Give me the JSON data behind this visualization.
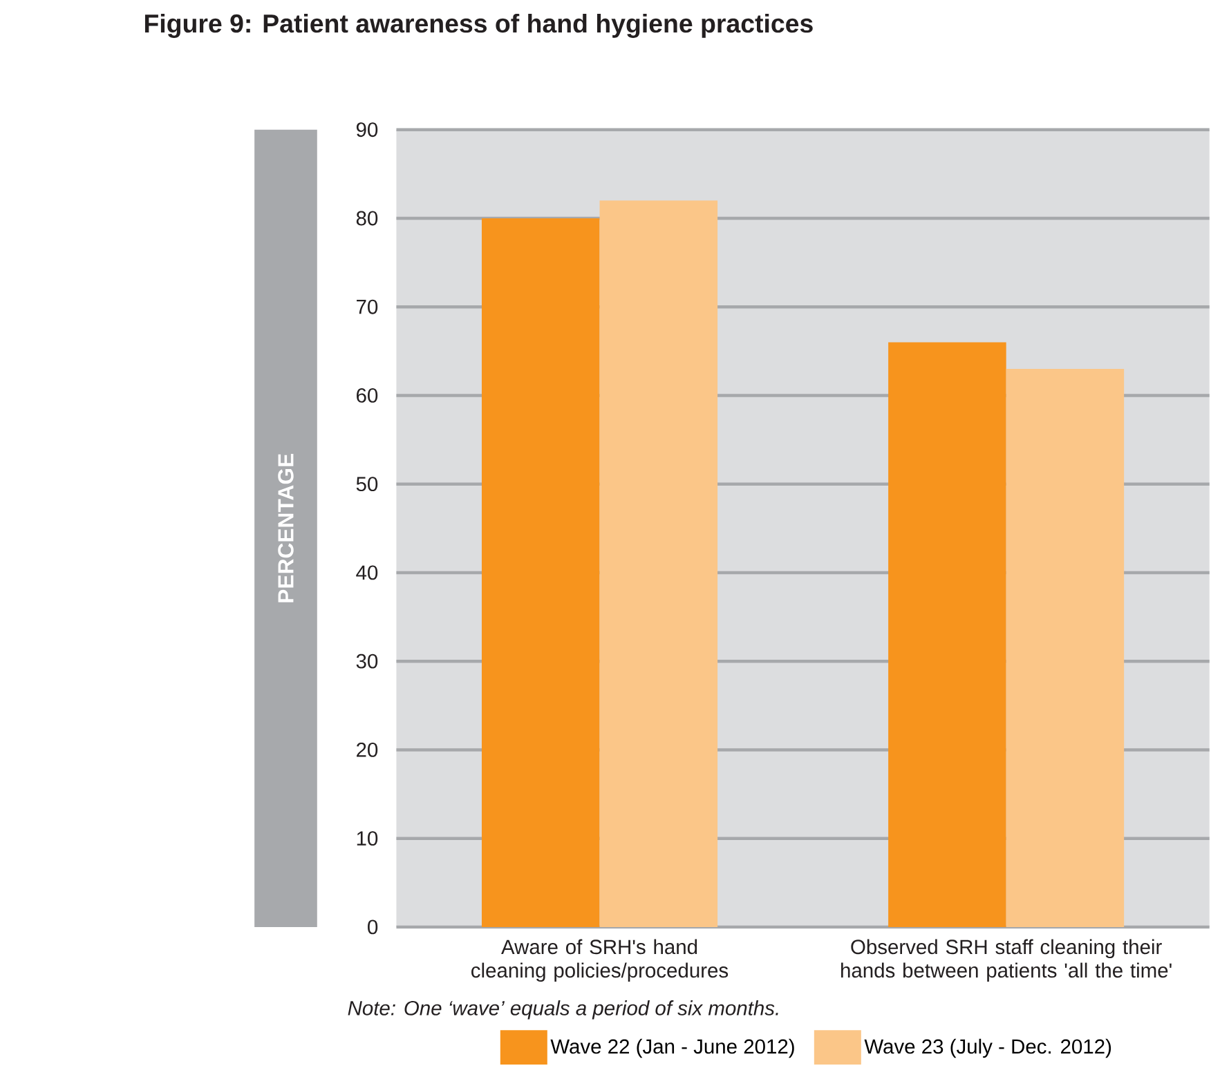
{
  "chart_data": {
    "type": "bar",
    "title": "Figure 9: Patient awareness of hand hygiene practices",
    "ylabel": "PERCENTAGE",
    "categories": [
      "Aware of SRH's hand cleaning policies/procedures",
      "Observed SRH staff cleaning their hands between patients 'all the time'"
    ],
    "series": [
      {
        "name": "Wave 22 (Jan - June 2012)",
        "color": "#f7941d",
        "values": [
          80,
          66
        ]
      },
      {
        "name": "Wave 23 (July - Dec. 2012)",
        "color": "#fbc688",
        "values": [
          82,
          63
        ]
      }
    ],
    "ylim": [
      0,
      90
    ],
    "yticks": [
      0,
      10,
      20,
      30,
      40,
      50,
      60,
      70,
      80,
      90
    ],
    "grid": "y",
    "legend": "bottom",
    "annotations": [
      "Note: One ‘wave’ equals a period of six months."
    ]
  }
}
